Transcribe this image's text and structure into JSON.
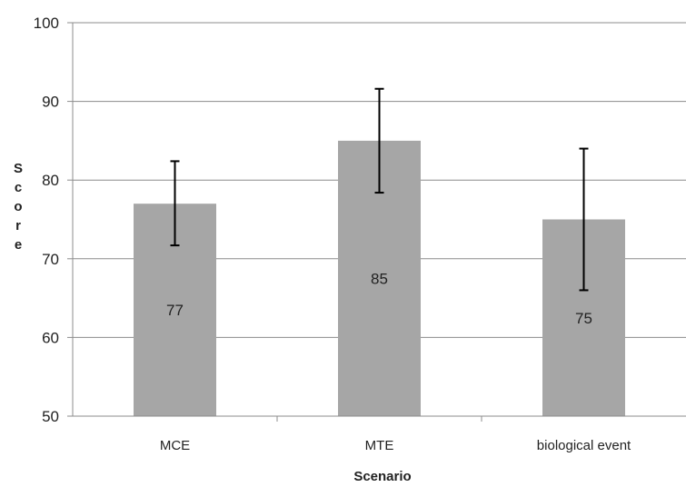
{
  "chart_data": {
    "type": "bar",
    "title": "",
    "xlabel": "Scenario",
    "ylabel": "Score",
    "categories": [
      "MCE",
      "MTE",
      "biological event"
    ],
    "values": [
      77,
      85,
      75
    ],
    "data_labels": [
      "77",
      "85",
      "75"
    ],
    "error_bars": [
      {
        "low": 71.7,
        "high": 82.4
      },
      {
        "low": 78.4,
        "high": 91.6
      },
      {
        "low": 66,
        "high": 84
      }
    ],
    "ylim": [
      50,
      100
    ],
    "yticks": [
      50,
      60,
      70,
      80,
      90,
      100
    ],
    "grid": true,
    "legend": "none",
    "colors": {
      "bar": "#a6a6a6",
      "grid": "#8c8c8c",
      "axis": "#8c8c8c",
      "error": "#000000"
    }
  }
}
